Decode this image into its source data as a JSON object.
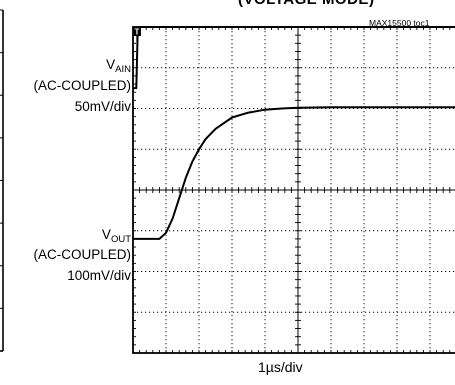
{
  "title": "(VOLTAGE MODE)",
  "figure_tag": "MAX15500 toc1",
  "chart_data": {
    "type": "line",
    "title": "(VOLTAGE MODE)",
    "xlabel": "1µs/div",
    "x_unit": "µs",
    "x_divisions": 10,
    "y_divisions": 8,
    "grid": true,
    "trigger_marker": "T",
    "channels": [
      {
        "name_main": "V",
        "name_sub": "AIN",
        "coupling": "(AC-COUPLED)",
        "scale": "50mV/div",
        "scale_value": 50,
        "unit": "mV"
      },
      {
        "name_main": "V",
        "name_sub": "OUT",
        "coupling": "(AC-COUPLED)",
        "scale": "100mV/div",
        "scale_value": 100,
        "unit": "mV"
      }
    ],
    "series": [
      {
        "name": "VAIN",
        "x": [
          0,
          0.1,
          0.12,
          0.14,
          0.16,
          1,
          2,
          3,
          4,
          5,
          6,
          7,
          8,
          9,
          10
        ],
        "y": [
          2.5,
          2.5,
          3.2,
          3.8,
          4.0,
          4.0,
          4.0,
          4.0,
          4.0,
          4.0,
          4.0,
          4.0,
          4.0,
          4.0,
          4.0
        ]
      },
      {
        "name": "VOUT",
        "x": [
          0,
          0.5,
          0.8,
          1.0,
          1.2,
          1.4,
          1.6,
          1.8,
          2.0,
          2.2,
          2.5,
          3.0,
          3.5,
          4.0,
          4.5,
          5.0,
          6.0,
          7.0,
          8.0,
          9.0,
          10.0
        ],
        "y": [
          -1.2,
          -1.2,
          -1.2,
          -1.05,
          -0.7,
          -0.2,
          0.3,
          0.7,
          1.0,
          1.25,
          1.5,
          1.78,
          1.9,
          1.97,
          2.0,
          2.02,
          2.03,
          2.03,
          2.03,
          2.03,
          2.03
        ]
      }
    ]
  }
}
